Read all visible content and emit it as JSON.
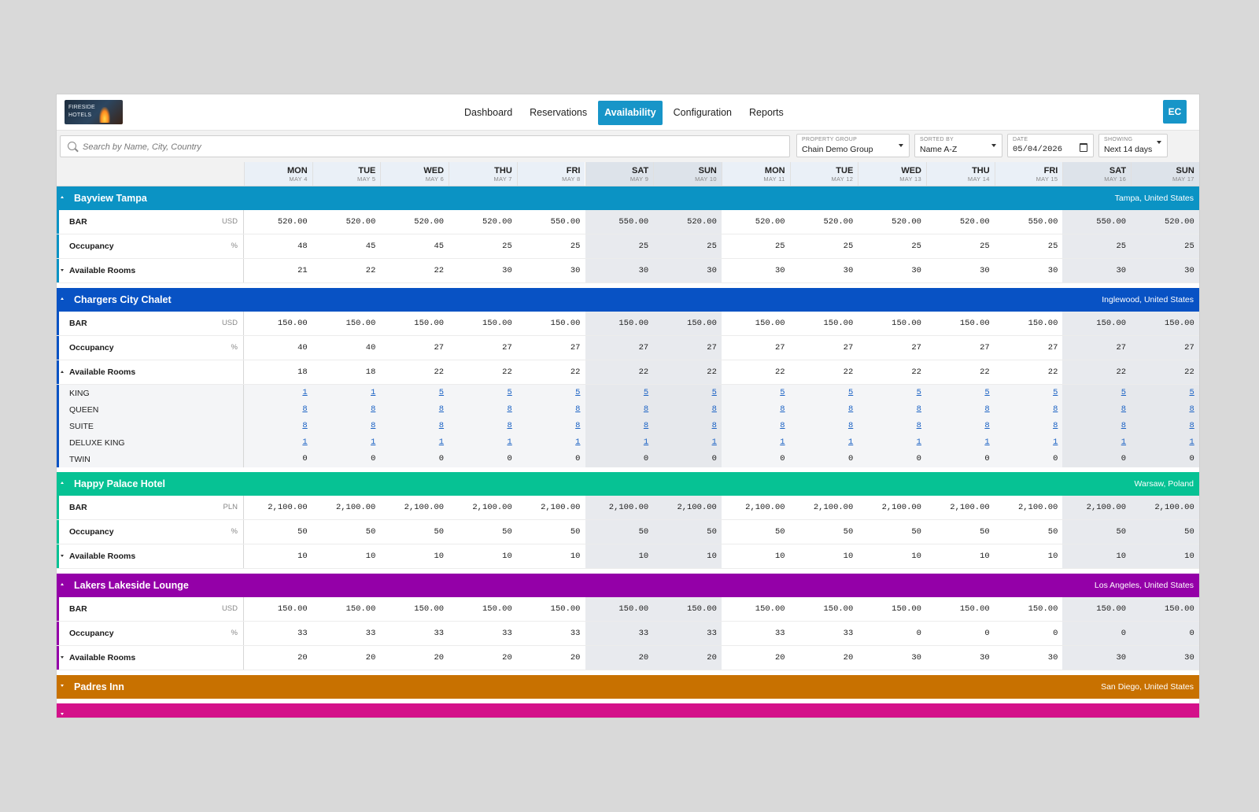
{
  "header": {
    "logo_text": "FIRESIDE HOTELS",
    "nav": [
      {
        "label": "Dashboard",
        "active": false
      },
      {
        "label": "Reservations",
        "active": false
      },
      {
        "label": "Availability",
        "active": true
      },
      {
        "label": "Configuration",
        "active": false
      },
      {
        "label": "Reports",
        "active": false
      }
    ],
    "avatar_initials": "EC"
  },
  "filters": {
    "search_placeholder": "Search by Name, City, Country",
    "property_group": {
      "label": "PROPERTY GROUP",
      "value": "Chain Demo Group"
    },
    "sorted_by": {
      "label": "SORTED BY",
      "value": "Name A-Z"
    },
    "date": {
      "label": "DATE",
      "value": "05/04/2026"
    },
    "showing": {
      "label": "SHOWING",
      "value": "Next 14 days"
    }
  },
  "days": [
    {
      "dow": "MON",
      "date": "MAY 4",
      "weekend": false
    },
    {
      "dow": "TUE",
      "date": "MAY 5",
      "weekend": false
    },
    {
      "dow": "WED",
      "date": "MAY 6",
      "weekend": false
    },
    {
      "dow": "THU",
      "date": "MAY 7",
      "weekend": false
    },
    {
      "dow": "FRI",
      "date": "MAY 8",
      "weekend": false
    },
    {
      "dow": "SAT",
      "date": "MAY 9",
      "weekend": true
    },
    {
      "dow": "SUN",
      "date": "MAY 10",
      "weekend": true
    },
    {
      "dow": "MON",
      "date": "MAY 11",
      "weekend": false
    },
    {
      "dow": "TUE",
      "date": "MAY 12",
      "weekend": false
    },
    {
      "dow": "WED",
      "date": "MAY 13",
      "weekend": false
    },
    {
      "dow": "THU",
      "date": "MAY 14",
      "weekend": false
    },
    {
      "dow": "FRI",
      "date": "MAY 15",
      "weekend": false
    },
    {
      "dow": "SAT",
      "date": "MAY 16",
      "weekend": true
    },
    {
      "dow": "SUN",
      "date": "MAY 17",
      "weekend": true
    }
  ],
  "properties": [
    {
      "name": "Bayview Tampa",
      "location": "Tampa, United States",
      "color": "#0b93c4",
      "expanded": true,
      "rows": [
        {
          "label": "BAR",
          "unit": "USD",
          "values": [
            "520.00",
            "520.00",
            "520.00",
            "520.00",
            "550.00",
            "550.00",
            "520.00",
            "520.00",
            "520.00",
            "520.00",
            "520.00",
            "550.00",
            "550.00",
            "520.00"
          ]
        },
        {
          "label": "Occupancy",
          "unit": "%",
          "values": [
            "48",
            "45",
            "45",
            "25",
            "25",
            "25",
            "25",
            "25",
            "25",
            "25",
            "25",
            "25",
            "25",
            "25"
          ]
        },
        {
          "label": "Available Rooms",
          "unit": "",
          "toggle": "down",
          "values": [
            "21",
            "22",
            "22",
            "30",
            "30",
            "30",
            "30",
            "30",
            "30",
            "30",
            "30",
            "30",
            "30",
            "30"
          ]
        }
      ],
      "room_types": []
    },
    {
      "name": "Chargers City Chalet",
      "location": "Inglewood, United States",
      "color": "#0852c4",
      "expanded": true,
      "rows": [
        {
          "label": "BAR",
          "unit": "USD",
          "values": [
            "150.00",
            "150.00",
            "150.00",
            "150.00",
            "150.00",
            "150.00",
            "150.00",
            "150.00",
            "150.00",
            "150.00",
            "150.00",
            "150.00",
            "150.00",
            "150.00"
          ]
        },
        {
          "label": "Occupancy",
          "unit": "%",
          "values": [
            "40",
            "40",
            "27",
            "27",
            "27",
            "27",
            "27",
            "27",
            "27",
            "27",
            "27",
            "27",
            "27",
            "27"
          ]
        },
        {
          "label": "Available Rooms",
          "unit": "",
          "toggle": "up",
          "values": [
            "18",
            "18",
            "22",
            "22",
            "22",
            "22",
            "22",
            "22",
            "22",
            "22",
            "22",
            "22",
            "22",
            "22"
          ]
        }
      ],
      "room_types": [
        {
          "label": "KING",
          "link": true,
          "values": [
            "1",
            "1",
            "5",
            "5",
            "5",
            "5",
            "5",
            "5",
            "5",
            "5",
            "5",
            "5",
            "5",
            "5"
          ]
        },
        {
          "label": "QUEEN",
          "link": true,
          "values": [
            "8",
            "8",
            "8",
            "8",
            "8",
            "8",
            "8",
            "8",
            "8",
            "8",
            "8",
            "8",
            "8",
            "8"
          ]
        },
        {
          "label": "SUITE",
          "link": true,
          "values": [
            "8",
            "8",
            "8",
            "8",
            "8",
            "8",
            "8",
            "8",
            "8",
            "8",
            "8",
            "8",
            "8",
            "8"
          ]
        },
        {
          "label": "DELUXE KING",
          "link": true,
          "values": [
            "1",
            "1",
            "1",
            "1",
            "1",
            "1",
            "1",
            "1",
            "1",
            "1",
            "1",
            "1",
            "1",
            "1"
          ]
        },
        {
          "label": "TWIN",
          "link": false,
          "values": [
            "0",
            "0",
            "0",
            "0",
            "0",
            "0",
            "0",
            "0",
            "0",
            "0",
            "0",
            "0",
            "0",
            "0"
          ]
        }
      ]
    },
    {
      "name": "Happy Palace Hotel",
      "location": "Warsaw, Poland",
      "color": "#06c294",
      "expanded": true,
      "rows": [
        {
          "label": "BAR",
          "unit": "PLN",
          "values": [
            "2,100.00",
            "2,100.00",
            "2,100.00",
            "2,100.00",
            "2,100.00",
            "2,100.00",
            "2,100.00",
            "2,100.00",
            "2,100.00",
            "2,100.00",
            "2,100.00",
            "2,100.00",
            "2,100.00",
            "2,100.00"
          ]
        },
        {
          "label": "Occupancy",
          "unit": "%",
          "values": [
            "50",
            "50",
            "50",
            "50",
            "50",
            "50",
            "50",
            "50",
            "50",
            "50",
            "50",
            "50",
            "50",
            "50"
          ]
        },
        {
          "label": "Available Rooms",
          "unit": "",
          "toggle": "down",
          "values": [
            "10",
            "10",
            "10",
            "10",
            "10",
            "10",
            "10",
            "10",
            "10",
            "10",
            "10",
            "10",
            "10",
            "10"
          ]
        }
      ],
      "room_types": []
    },
    {
      "name": "Lakers Lakeside Lounge",
      "location": "Los Angeles, United States",
      "color": "#9400a8",
      "expanded": true,
      "rows": [
        {
          "label": "BAR",
          "unit": "USD",
          "values": [
            "150.00",
            "150.00",
            "150.00",
            "150.00",
            "150.00",
            "150.00",
            "150.00",
            "150.00",
            "150.00",
            "150.00",
            "150.00",
            "150.00",
            "150.00",
            "150.00"
          ]
        },
        {
          "label": "Occupancy",
          "unit": "%",
          "values": [
            "33",
            "33",
            "33",
            "33",
            "33",
            "33",
            "33",
            "33",
            "33",
            "0",
            "0",
            "0",
            "0",
            "0"
          ]
        },
        {
          "label": "Available Rooms",
          "unit": "",
          "toggle": "down",
          "values": [
            "20",
            "20",
            "20",
            "20",
            "20",
            "20",
            "20",
            "20",
            "20",
            "30",
            "30",
            "30",
            "30",
            "30"
          ]
        }
      ],
      "room_types": []
    },
    {
      "name": "Padres Inn",
      "location": "San Diego, United States",
      "color": "#c87100",
      "expanded": false,
      "rows": [],
      "room_types": []
    },
    {
      "name": "",
      "location": "",
      "color": "#d4118a",
      "expanded": false,
      "rows": [],
      "room_types": []
    }
  ]
}
